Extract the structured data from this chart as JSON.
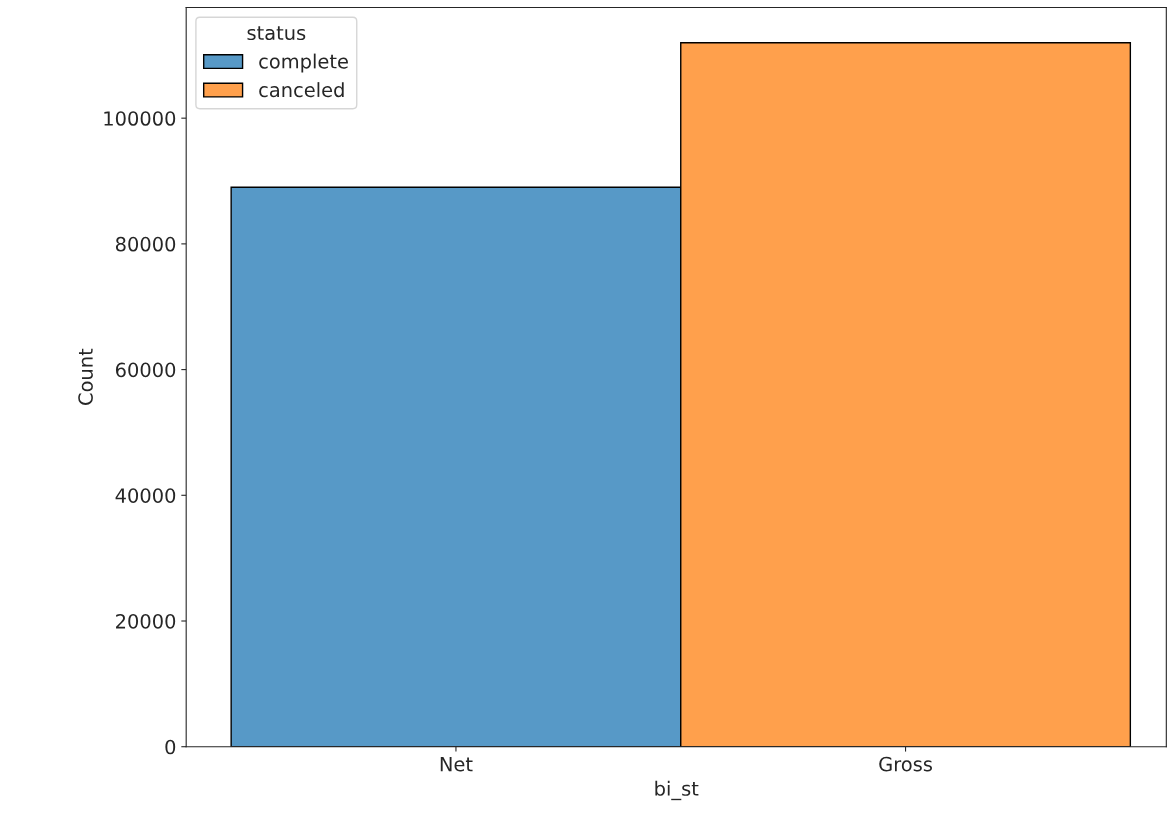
{
  "chart_data": {
    "type": "bar",
    "xlabel": "bi_st",
    "ylabel": "Count",
    "legend_title": "status",
    "categories": [
      "Net",
      "Gross"
    ],
    "series": [
      {
        "name": "complete",
        "color": "#5799c7",
        "values": [
          89000,
          null
        ]
      },
      {
        "name": "canceled",
        "color": "#ffa04c",
        "values": [
          null,
          112000
        ]
      }
    ],
    "ylim": [
      0,
      117600
    ],
    "yticks": [
      0,
      20000,
      40000,
      60000,
      80000,
      100000
    ],
    "grid": false,
    "legend": "top left"
  }
}
